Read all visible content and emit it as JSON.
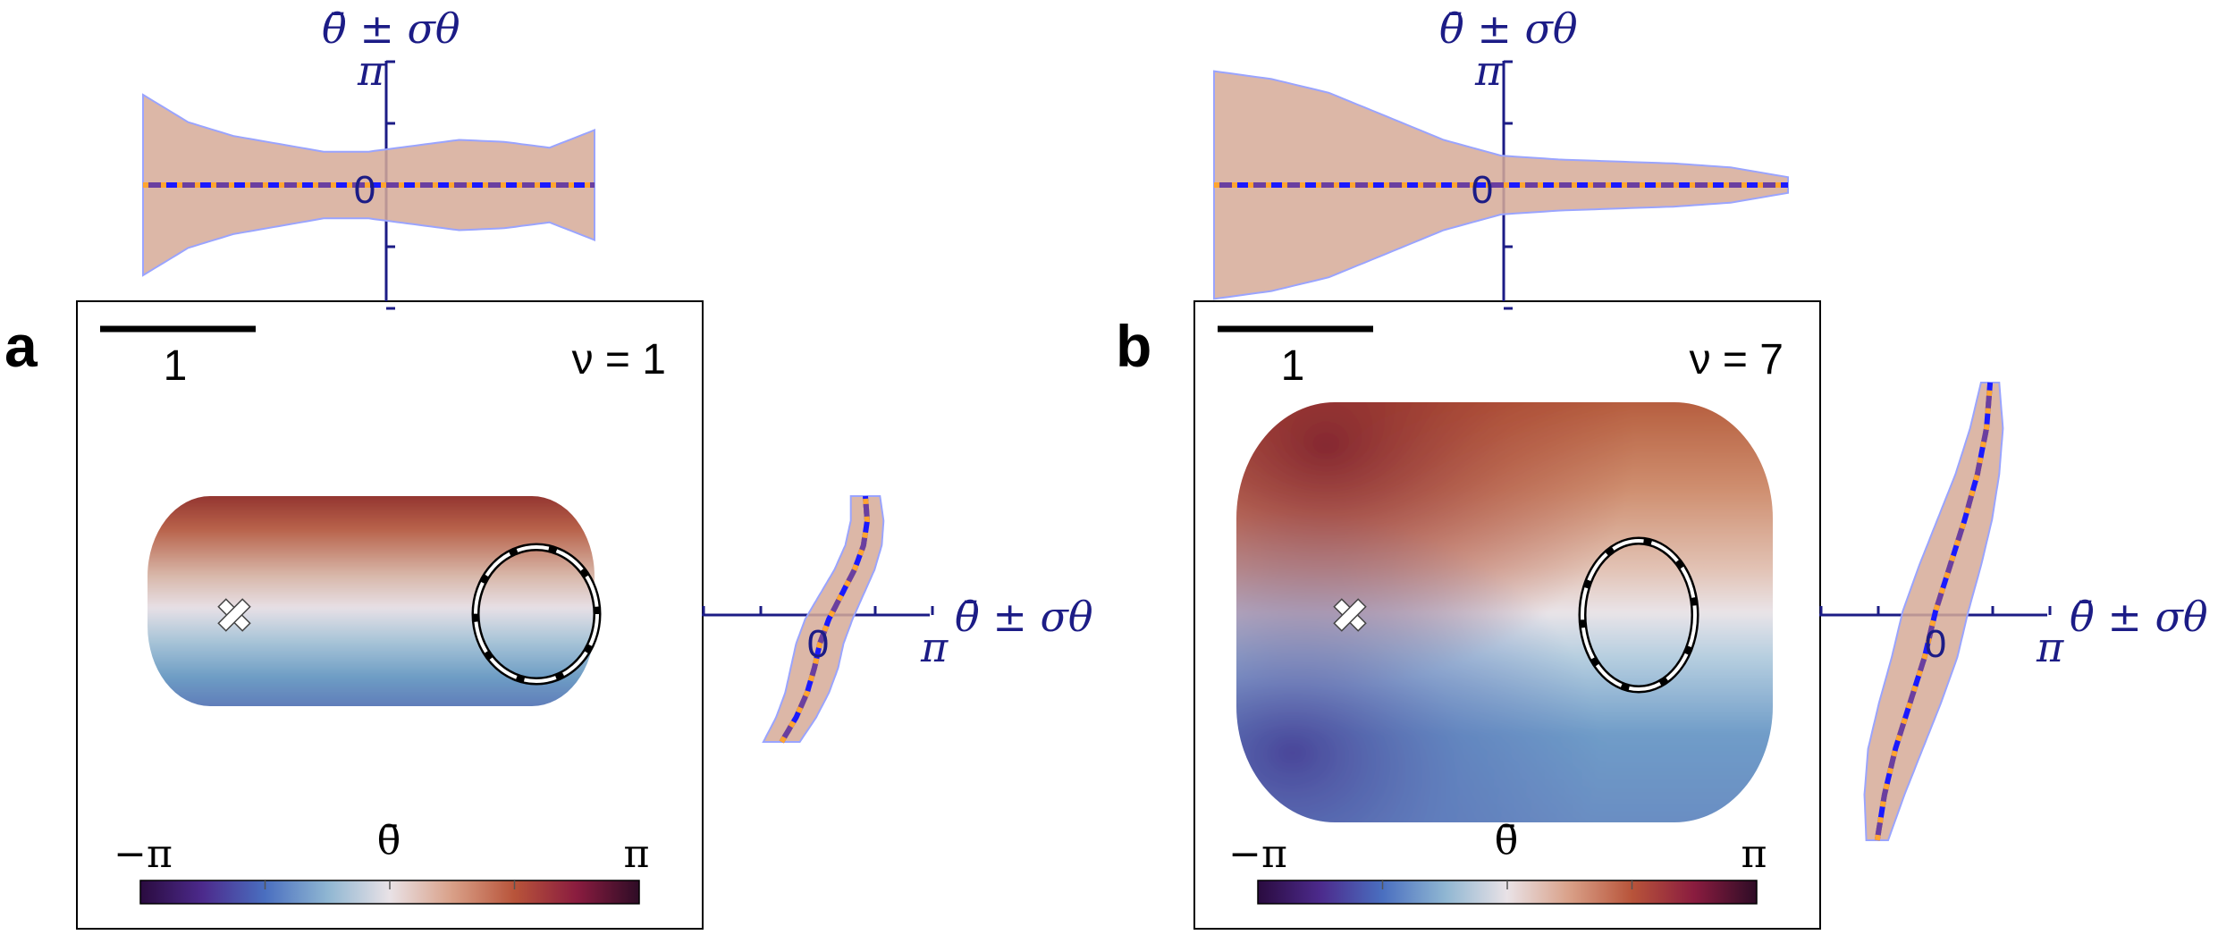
{
  "colors": {
    "axis": "#1c1c86",
    "band_fill": "#d6aa98",
    "band_edge": "#9aa4ff",
    "mean_line": "#1a1aff",
    "dash_orange": "#ffa530",
    "dash_purple": "#6a3fa0",
    "colormap": [
      "#2a0b3f",
      "#4c2a8c",
      "#4a6fc0",
      "#8fb6d2",
      "#e9e2e6",
      "#d9a088",
      "#b8543a",
      "#8a1c3f",
      "#2e0c26"
    ]
  },
  "panels": [
    {
      "letter": "a",
      "nu_label": "ν = 1",
      "scale_bar_label": "1",
      "colorbar": {
        "title": "θ̄",
        "min_label": "−π",
        "max_label": "π"
      },
      "marker": "white-cross",
      "top_axis_label": "θ̄ ± σθ",
      "top_axis_tick_pi": "π",
      "top_axis_tick_zero": "0",
      "side_axis_label": "θ̄ ± σθ",
      "side_axis_tick_pi": "π",
      "side_axis_tick_zero": "0"
    },
    {
      "letter": "b",
      "nu_label": "ν = 7",
      "scale_bar_label": "1",
      "colorbar": {
        "title": "θ̄",
        "min_label": "−π",
        "max_label": "π"
      },
      "marker": "white-cross",
      "top_axis_label": "θ̄ ± σθ",
      "top_axis_tick_pi": "π",
      "top_axis_tick_zero": "0",
      "side_axis_label": "θ̄ ± σθ",
      "side_axis_tick_pi": "π",
      "side_axis_tick_zero": "0"
    }
  ],
  "chart_data": [
    {
      "type": "heatmap",
      "panel": "a",
      "title": "ν = 1",
      "colorbar_range": [
        "−π",
        "π"
      ],
      "colorbar_label": "θ̄",
      "scale_bar": "1",
      "profile_horizontal": {
        "xlabel": "",
        "ylabel": "θ̄ ± σθ",
        "position": [
          0.0,
          0.1,
          0.2,
          0.3,
          0.4,
          0.5,
          0.6,
          0.7,
          0.8,
          0.9,
          1.0
        ],
        "mean": [
          0.0,
          0.0,
          0.0,
          0.0,
          0.0,
          0.0,
          0.0,
          0.0,
          0.0,
          0.0,
          0.0
        ],
        "std": [
          2.3,
          1.6,
          1.25,
          1.05,
          0.85,
          0.85,
          1.0,
          1.15,
          1.1,
          0.95,
          1.4
        ],
        "ylim": [
          -3.1416,
          3.1416
        ]
      },
      "profile_vertical": {
        "ylabel": "θ̄ ± σθ",
        "position": [
          0.0,
          0.1,
          0.2,
          0.3,
          0.4,
          0.5,
          0.6,
          0.7,
          0.8,
          0.9,
          1.0
        ],
        "mean": [
          -1.0,
          -0.6,
          -0.3,
          -0.1,
          0.05,
          0.3,
          0.65,
          1.0,
          1.25,
          1.35,
          1.3
        ],
        "std": [
          0.5,
          0.55,
          0.6,
          0.65,
          0.65,
          0.65,
          0.6,
          0.55,
          0.5,
          0.45,
          0.4
        ],
        "xlim": [
          -3.1416,
          3.1416
        ]
      }
    },
    {
      "type": "heatmap",
      "panel": "b",
      "title": "ν = 7",
      "colorbar_range": [
        "−π",
        "π"
      ],
      "colorbar_label": "θ̄",
      "scale_bar": "1",
      "profile_horizontal": {
        "xlabel": "",
        "ylabel": "θ̄ ± σθ",
        "position": [
          0.0,
          0.1,
          0.2,
          0.3,
          0.4,
          0.5,
          0.6,
          0.7,
          0.8,
          0.9,
          1.0
        ],
        "mean": [
          0.0,
          0.0,
          0.0,
          0.0,
          0.0,
          0.0,
          0.0,
          0.0,
          0.0,
          0.0,
          0.0
        ],
        "std": [
          2.9,
          2.7,
          2.35,
          1.75,
          1.15,
          0.75,
          0.65,
          0.6,
          0.55,
          0.45,
          0.2
        ],
        "ylim": [
          -3.1416,
          3.1416
        ]
      },
      "profile_vertical": {
        "ylabel": "θ̄ ± σθ",
        "position": [
          0.0,
          0.1,
          0.2,
          0.3,
          0.4,
          0.5,
          0.6,
          0.7,
          0.8,
          0.9,
          1.0
        ],
        "mean": [
          -1.6,
          -1.4,
          -1.1,
          -0.7,
          -0.3,
          0.0,
          0.4,
          0.8,
          1.15,
          1.4,
          1.5
        ],
        "std": [
          0.3,
          0.55,
          0.75,
          0.85,
          0.9,
          0.9,
          0.85,
          0.75,
          0.6,
          0.45,
          0.25
        ],
        "xlim": [
          -3.1416,
          3.1416
        ]
      }
    }
  ]
}
